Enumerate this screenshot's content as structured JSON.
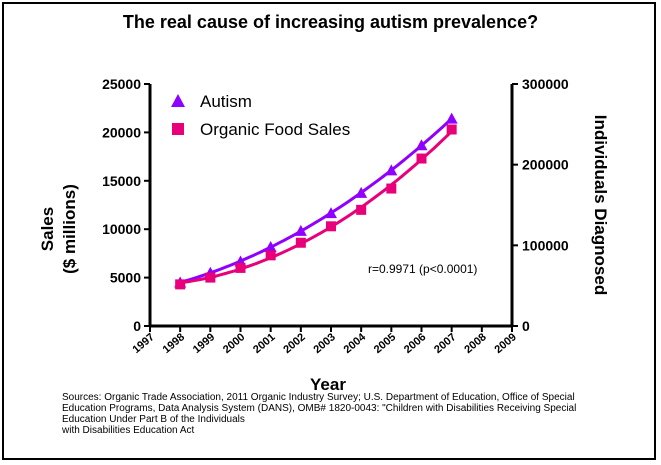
{
  "title": "The real cause of increasing autism prevalence?",
  "chart_data": {
    "type": "line",
    "xlabel": "Year",
    "ylabel_left_line1": "Sales",
    "ylabel_left_line2": "($ millions)",
    "ylabel_right": "Individuals Diagnosed",
    "x_ticks": [
      "1997",
      "1998",
      "1999",
      "2000",
      "2001",
      "2002",
      "2003",
      "2004",
      "2005",
      "2006",
      "2007",
      "2008",
      "2009"
    ],
    "xlim": [
      1997,
      2009
    ],
    "ylim_left": [
      0,
      25000
    ],
    "yticks_left": [
      "0",
      "5000",
      "10000",
      "15000",
      "20000",
      "25000"
    ],
    "ylim_right": [
      0,
      300000
    ],
    "yticks_right": [
      "0",
      "100000",
      "200000",
      "300000"
    ],
    "annotation": "r=0.9971 (p<0.0001)",
    "legend_position": "top-left",
    "series": [
      {
        "name": "Autism",
        "axis": "right",
        "marker": "triangle",
        "color": "#8f00ff",
        "x": [
          1998,
          1999,
          2000,
          2001,
          2002,
          2003,
          2004,
          2005,
          2006,
          2007
        ],
        "values": [
          54000,
          66000,
          80000,
          98000,
          118000,
          140000,
          165000,
          193000,
          224000,
          257000
        ]
      },
      {
        "name": "Organic Food Sales",
        "axis": "left",
        "marker": "square",
        "color": "#e8007a",
        "x": [
          1998,
          1999,
          2000,
          2001,
          2002,
          2003,
          2004,
          2005,
          2006,
          2007
        ],
        "values": [
          4300,
          5000,
          6000,
          7300,
          8600,
          10300,
          12000,
          14200,
          17300,
          20300
        ]
      }
    ]
  },
  "sources": {
    "line1": "Sources: Organic Trade Association,  2011 Organic Industry Survey; U.S. Department of Education, Office of Special",
    "line2": "Education Programs, Data Analysis System (DANS), OMB# 1820-0043: \"Children with Disabilities Receiving Special",
    "line3": "Education Under Part B of the Individuals",
    "line4": "with Disabilities Education Act"
  }
}
